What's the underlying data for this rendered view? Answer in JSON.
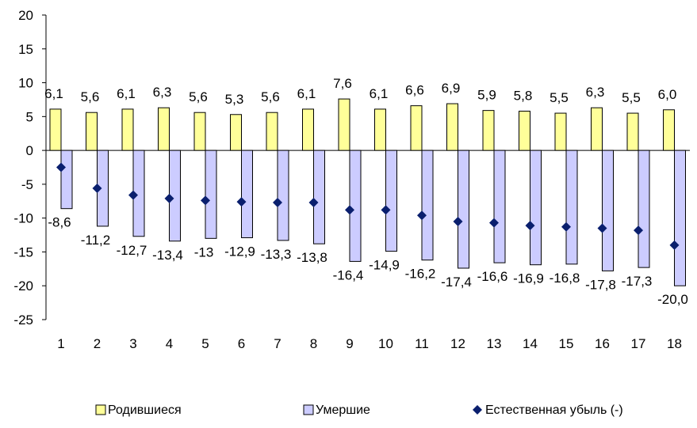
{
  "chart_data": {
    "type": "bar",
    "categories": [
      "1",
      "2",
      "3",
      "4",
      "5",
      "6",
      "7",
      "8",
      "9",
      "10",
      "11",
      "12",
      "13",
      "14",
      "15",
      "16",
      "17",
      "18"
    ],
    "ylim": [
      -25,
      20
    ],
    "yticks": [
      "20",
      "15",
      "10",
      "5",
      "0",
      "-5",
      "-10",
      "-15",
      "-20",
      "-25"
    ],
    "grid": false,
    "legend_position": "bottom",
    "series": [
      {
        "name": "Родившиеся",
        "kind": "bar",
        "color": "#FFFF99",
        "values": [
          6.1,
          5.6,
          6.1,
          6.3,
          5.6,
          5.3,
          5.6,
          6.1,
          7.6,
          6.1,
          6.6,
          6.9,
          5.9,
          5.8,
          5.5,
          6.3,
          5.5,
          6.0
        ],
        "labels": [
          "6,1",
          "5,6",
          "6,1",
          "6,3",
          "5,6",
          "5,3",
          "5,6",
          "6,1",
          "7,6",
          "6,1",
          "6,6",
          "6,9",
          "5,9",
          "5,8",
          "5,5",
          "6,3",
          "5,5",
          "6,0"
        ]
      },
      {
        "name": "Умершие",
        "kind": "bar",
        "color": "#CCCCFF",
        "values": [
          -8.6,
          -11.2,
          -12.7,
          -13.4,
          -13,
          -12.9,
          -13.3,
          -13.8,
          -16.4,
          -14.9,
          -16.2,
          -17.4,
          -16.6,
          -16.9,
          -16.8,
          -17.8,
          -17.3,
          -20.0
        ],
        "labels": [
          "-8,6",
          "-11,2",
          "-12,7",
          "-13,4",
          "-13",
          "-12,9",
          "-13,3",
          "-13,8",
          "-16,4",
          "-14,9",
          "-16,2",
          "-17,4",
          "-16,6",
          "-16,9",
          "-16,8",
          "-17,8",
          "-17,3",
          "-20,0"
        ]
      },
      {
        "name": "Естественная убыль (-)",
        "kind": "marker",
        "color": "#0A1F6E",
        "values": [
          -2.5,
          -5.6,
          -6.6,
          -7.1,
          -7.4,
          -7.6,
          -7.7,
          -7.7,
          -8.8,
          -8.8,
          -9.6,
          -10.5,
          -10.7,
          -11.1,
          -11.3,
          -11.5,
          -11.8,
          -14.0
        ]
      }
    ]
  }
}
